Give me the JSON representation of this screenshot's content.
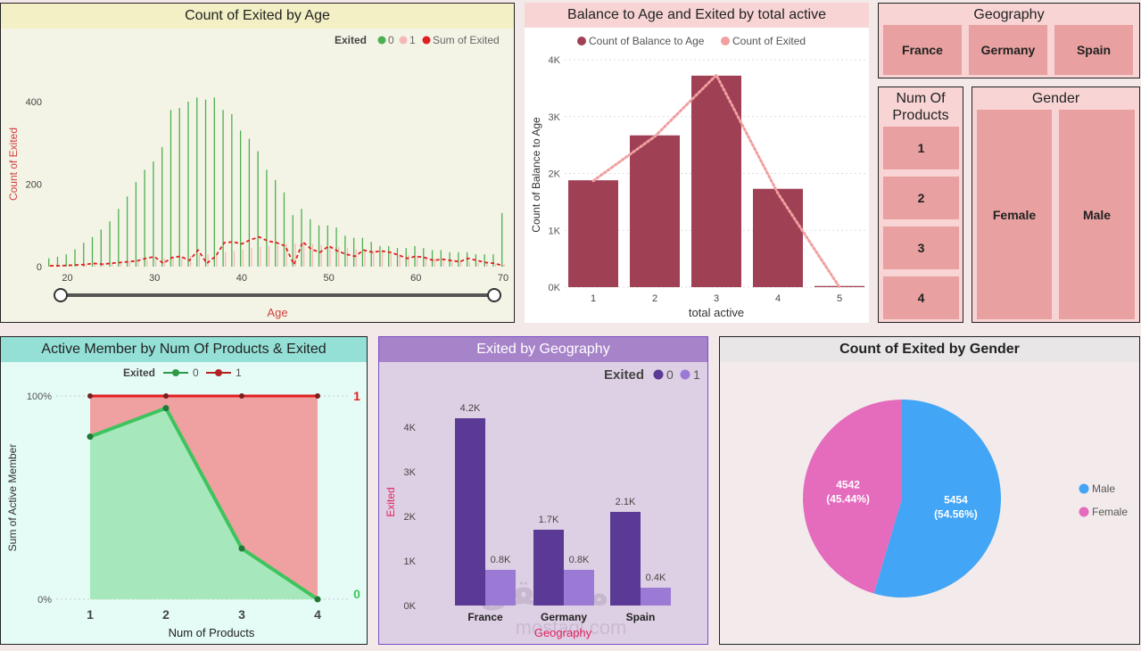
{
  "colors": {
    "green": "#4caf50",
    "lightpink": "#f4b8b8",
    "red": "#e02020",
    "maroon": "#a04055",
    "salmon": "#f0a0a0",
    "darkgreen": "#2e9b46",
    "darkred": "#b22222",
    "purple_dark": "#5a3a94",
    "purple_light": "#9b7ad6",
    "blue": "#42a5f5",
    "pink": "#e56bbd",
    "slicer": "#e8a0a0"
  },
  "panels": {
    "age": {
      "title": "Count of Exited by Age",
      "legend_label": "Exited",
      "legend_items": [
        "0",
        "1",
        "Sum of Exited"
      ],
      "xlabel": "Age",
      "ylabel": "Count of Exited"
    },
    "balance": {
      "title": "Balance to Age and Exited by total active",
      "legend_items": [
        "Count of Balance to Age",
        "Count of Exited"
      ],
      "xlabel": "total active",
      "ylabel": "Count of Balance to Age"
    },
    "geography_slicer": {
      "title": "Geography",
      "items": [
        "France",
        "Germany",
        "Spain"
      ]
    },
    "products_slicer": {
      "title": "Num Of Products",
      "items": [
        "1",
        "2",
        "3",
        "4"
      ]
    },
    "gender_slicer": {
      "title": "Gender",
      "items": [
        "Female",
        "Male"
      ]
    },
    "active": {
      "title": "Active Member by Num Of Products & Exited",
      "legend_label": "Exited",
      "legend_items": [
        "0",
        "1"
      ],
      "xlabel": "Num of Products",
      "ylabel": "Sum of Active Member",
      "end_labels": [
        "1",
        "0"
      ]
    },
    "geo": {
      "title": "Exited by Geography",
      "legend_label": "Exited",
      "legend_items": [
        "0",
        "1"
      ],
      "xlabel": "Geography",
      "ylabel": "Exited",
      "watermark": "مستقل",
      "watermark_sub": "mostaql.com"
    },
    "gender": {
      "title": "Count of Exited by Gender",
      "legend_items": [
        "Male",
        "Female"
      ]
    }
  },
  "chart_data": [
    {
      "id": "age",
      "type": "bar",
      "title": "Count of Exited by Age",
      "xlabel": "Age",
      "ylabel": "Count of Exited",
      "xlim": [
        18,
        70
      ],
      "ylim": [
        0,
        460
      ],
      "xticks": [
        "20",
        "30",
        "40",
        "50",
        "60",
        "70"
      ],
      "yticks": [
        "0",
        "200",
        "400"
      ],
      "x": [
        18,
        19,
        20,
        21,
        22,
        23,
        24,
        25,
        26,
        27,
        28,
        29,
        30,
        31,
        32,
        33,
        34,
        35,
        36,
        37,
        38,
        39,
        40,
        41,
        42,
        43,
        44,
        45,
        46,
        47,
        48,
        49,
        50,
        51,
        52,
        53,
        54,
        55,
        56,
        57,
        58,
        59,
        60,
        61,
        62,
        63,
        64,
        65,
        66,
        67,
        68,
        69,
        70
      ],
      "series": [
        {
          "name": "0",
          "values": [
            20,
            24,
            30,
            42,
            58,
            72,
            90,
            110,
            140,
            170,
            205,
            235,
            255,
            290,
            380,
            385,
            400,
            410,
            405,
            410,
            380,
            370,
            330,
            310,
            280,
            235,
            210,
            180,
            125,
            140,
            115,
            100,
            100,
            95,
            75,
            70,
            70,
            60,
            50,
            50,
            45,
            45,
            50,
            45,
            40,
            40,
            35,
            35,
            35,
            30,
            30,
            30,
            130
          ]
        },
        {
          "name": "1",
          "values": [
            2,
            2,
            3,
            4,
            5,
            6,
            8,
            9,
            10,
            12,
            14,
            15,
            17,
            20,
            22,
            24,
            26,
            28,
            30,
            32,
            35,
            38,
            42,
            45,
            48,
            50,
            52,
            55,
            56,
            57,
            55,
            52,
            50,
            48,
            45,
            42,
            40,
            38,
            35,
            32,
            30,
            28,
            26,
            24,
            20,
            18,
            16,
            14,
            12,
            10,
            8,
            6,
            5
          ]
        },
        {
          "name": "Sum of Exited",
          "values": [
            2,
            2,
            3,
            4,
            5,
            8,
            6,
            8,
            10,
            12,
            14,
            20,
            24,
            8,
            22,
            25,
            15,
            40,
            8,
            25,
            58,
            60,
            55,
            65,
            72,
            62,
            58,
            50,
            5,
            60,
            42,
            35,
            50,
            38,
            30,
            25,
            40,
            35,
            38,
            35,
            28,
            20,
            25,
            22,
            15,
            18,
            15,
            12,
            20,
            15,
            10,
            8,
            2
          ]
        }
      ]
    },
    {
      "id": "balance",
      "type": "bar",
      "title": "Balance to Age and Exited by total active",
      "xlabel": "total active",
      "ylabel": "Count of Balance to Age",
      "categories": [
        "1",
        "2",
        "3",
        "4",
        "5"
      ],
      "ylim": [
        0,
        4000
      ],
      "yticks": [
        "0K",
        "1K",
        "2K",
        "3K",
        "4K"
      ],
      "series": [
        {
          "name": "Count of Balance to Age",
          "values": [
            1880,
            2670,
            3720,
            1730,
            20
          ]
        },
        {
          "name": "Count of Exited",
          "values": [
            1870,
            2650,
            3730,
            1650,
            0
          ]
        }
      ]
    },
    {
      "id": "active",
      "type": "area",
      "title": "Active Member by Num Of Products & Exited",
      "xlabel": "Num of Products",
      "ylabel": "Sum of Active Member",
      "categories": [
        "1",
        "2",
        "3",
        "4"
      ],
      "ylim": [
        0,
        1
      ],
      "yticks": [
        "0%",
        "100%"
      ],
      "series": [
        {
          "name": "0",
          "values": [
            0.8,
            0.94,
            0.25,
            0.0
          ]
        },
        {
          "name": "1",
          "values": [
            1.0,
            1.0,
            1.0,
            1.0
          ]
        }
      ]
    },
    {
      "id": "geo",
      "type": "bar",
      "title": "Exited by Geography",
      "xlabel": "Geography",
      "ylabel": "Exited",
      "categories": [
        "France",
        "Germany",
        "Spain"
      ],
      "ylim": [
        0,
        4500
      ],
      "yticks": [
        "0K",
        "1K",
        "2K",
        "3K",
        "4K"
      ],
      "series": [
        {
          "name": "0",
          "values": [
            4200,
            1700,
            2100
          ],
          "labels": [
            "4.2K",
            "1.7K",
            "2.1K"
          ]
        },
        {
          "name": "1",
          "values": [
            800,
            800,
            400
          ],
          "labels": [
            "0.8K",
            "0.8K",
            "0.4K"
          ]
        }
      ]
    },
    {
      "id": "gender",
      "type": "pie",
      "title": "Count of Exited by Gender",
      "slices": [
        {
          "label": "Male",
          "value": 5454,
          "text": "5454",
          "pct": "(54.56%)"
        },
        {
          "label": "Female",
          "value": 4542,
          "text": "4542",
          "pct": "(45.44%)"
        }
      ]
    }
  ]
}
